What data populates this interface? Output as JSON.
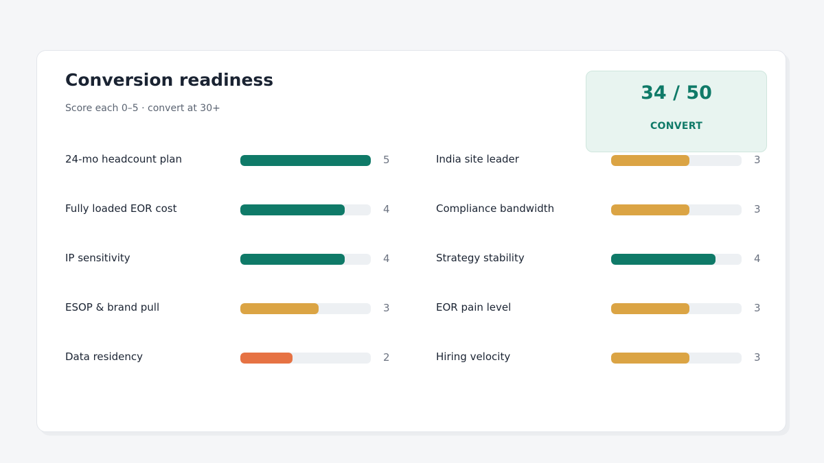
{
  "card": {
    "title": "Conversion readiness",
    "subtitle": "Score each 0–5 · convert at 30+"
  },
  "score": {
    "value": "34 / 50",
    "verdict": "CONVERT",
    "color": "#0f7a68"
  },
  "scale_max": 5,
  "colors": {
    "high": "#0f7a68",
    "mid": "#dba444",
    "low": "#e67243",
    "track": "#edf0f3"
  },
  "criteria": [
    {
      "label": "24-mo headcount plan",
      "score": 5,
      "display": "5"
    },
    {
      "label": "Fully loaded EOR cost",
      "score": 4,
      "display": "4"
    },
    {
      "label": "IP sensitivity",
      "score": 4,
      "display": "4"
    },
    {
      "label": "ESOP & brand pull",
      "score": 3,
      "display": "3"
    },
    {
      "label": "Data residency",
      "score": 2,
      "display": "2"
    },
    {
      "label": "India site leader",
      "score": 3,
      "display": "3"
    },
    {
      "label": "Compliance bandwidth",
      "score": 3,
      "display": "3"
    },
    {
      "label": "Strategy stability",
      "score": 4,
      "display": "4"
    },
    {
      "label": "EOR pain level",
      "score": 3,
      "display": "3"
    },
    {
      "label": "Hiring velocity",
      "score": 3,
      "display": "3"
    }
  ]
}
